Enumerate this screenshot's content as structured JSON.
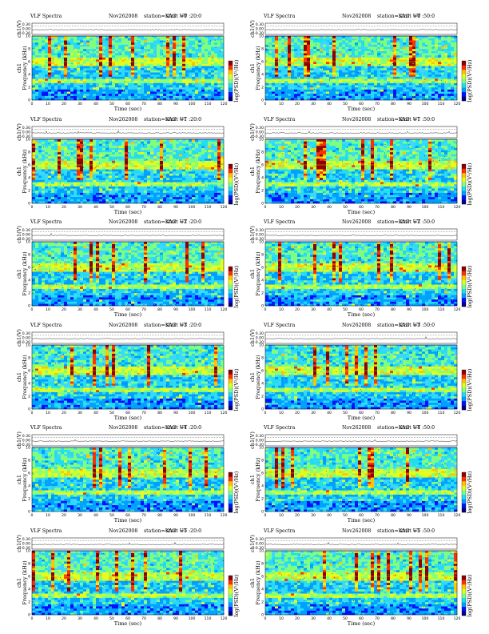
{
  "chart_data": {
    "type": "heatmap",
    "program": "VLF Spectra",
    "date": "Nov262008",
    "station_label": "station=KAG",
    "start_label": "start  UT",
    "upper_ylabel": "ch1(V)",
    "upper_yticks": [
      "0.30",
      "0.00",
      "-0.30"
    ],
    "ylabel": "Frequency  (kHz)",
    "ylabel_channel": "ch1",
    "xlabel": "Time  (sec)",
    "xlim": [
      0,
      120
    ],
    "ylim": [
      0,
      10
    ],
    "xticks": [
      "0",
      "10",
      "20",
      "30",
      "40",
      "50",
      "60",
      "70",
      "80",
      "90",
      "100",
      "110",
      "120"
    ],
    "yticks": [
      "0",
      "2",
      "4",
      "6",
      "8",
      "10"
    ],
    "colorbar_label": "log(PSD)(V²/Hz)",
    "colorbar_ticks": [
      "",
      "-"
    ],
    "colors": [
      "#00007f",
      "#0010ff",
      "#00a0ff",
      "#22ddee",
      "#7fff7f",
      "#e0ff20",
      "#ffc400",
      "#ff3000",
      "#8f0000"
    ],
    "panels": [
      {
        "ut": "=0 :20:0",
        "cutoff_khz": 10.0,
        "activity": 0.62
      },
      {
        "ut": "=0 :50:0",
        "cutoff_khz": 10.0,
        "activity": 0.6
      },
      {
        "ut": "=1 :20:0",
        "cutoff_khz": 10.0,
        "activity": 0.62
      },
      {
        "ut": "=1 :50:0",
        "cutoff_khz": 10.0,
        "activity": 0.58
      },
      {
        "ut": "=2 :20:0",
        "cutoff_khz": 10.0,
        "activity": 0.58
      },
      {
        "ut": "=2 :50:0",
        "cutoff_khz": 10.0,
        "activity": 0.55
      },
      {
        "ut": "=3 :20:0",
        "cutoff_khz": 10.0,
        "activity": 0.45
      },
      {
        "ut": "=3 :50:0",
        "cutoff_khz": 10.0,
        "activity": 0.42
      },
      {
        "ut": "=4 :20:0",
        "cutoff_khz": 10.8,
        "activity": 0.55
      },
      {
        "ut": "=4 :50:0",
        "cutoff_khz": 10.8,
        "activity": 0.55
      },
      {
        "ut": "=5 :20:0",
        "cutoff_khz": 11.0,
        "activity": 0.62
      },
      {
        "ut": "=5 :50:0",
        "cutoff_khz": 11.0,
        "activity": 0.62
      }
    ]
  }
}
